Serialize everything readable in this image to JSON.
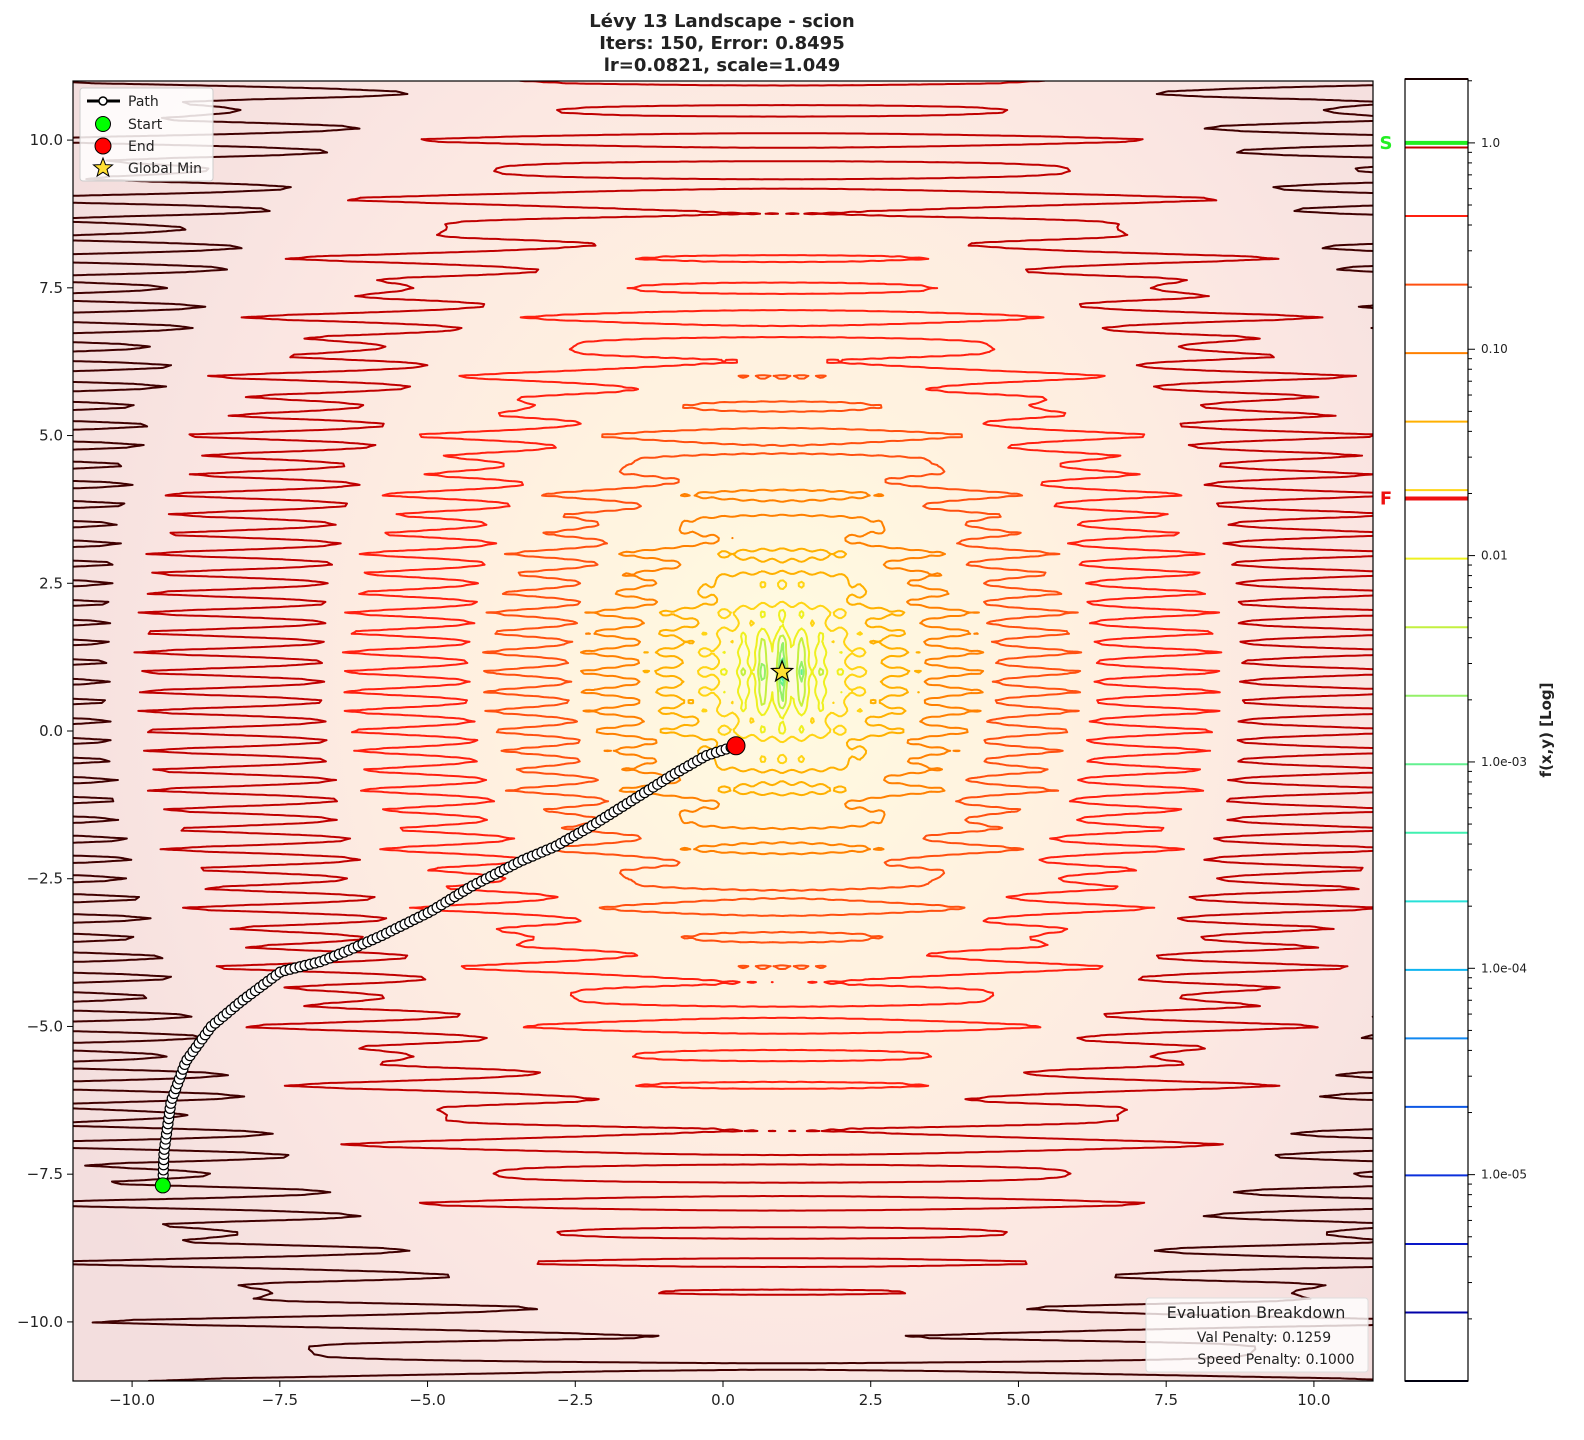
{
  "chart_data": {
    "type": "contour",
    "title": [
      "Lévy 13 Landscape - scion",
      "Iters: 150, Error: 0.8495",
      "lr=0.0821, scale=1.049"
    ],
    "function": "Lévy 13",
    "xlim": [
      -11,
      11
    ],
    "ylim": [
      -11,
      11
    ],
    "x_ticks": [
      "−10.0",
      "−7.5",
      "−5.0",
      "−2.5",
      "0.0",
      "2.5",
      "5.0",
      "7.5",
      "10.0"
    ],
    "x_tick_values": [
      -10,
      -7.5,
      -5,
      -2.5,
      0,
      2.5,
      5,
      7.5,
      10
    ],
    "y_ticks": [
      "−10.0",
      "−7.5",
      "−5.0",
      "−2.5",
      "0.0",
      "2.5",
      "5.0",
      "7.5",
      "10.0"
    ],
    "y_tick_values": [
      -10,
      -7.5,
      -5,
      -2.5,
      0,
      2.5,
      5,
      7.5,
      10
    ],
    "grid": false,
    "colorbar": {
      "label": "f(x,y) [Log]",
      "scale": "log",
      "range": [
        1e-06,
        2.04
      ],
      "tick_labels": [
        "1.0",
        "0.10",
        "0.01",
        "1.0e-03",
        "1.0e-04",
        "1.0e-05"
      ],
      "tick_values": [
        1,
        0.1,
        0.01,
        0.001,
        0.0001,
        1e-05
      ],
      "start_marker": {
        "label": "S",
        "value": 1.0,
        "color": "#22ee22"
      },
      "end_marker": {
        "label": "F",
        "value": 0.0189,
        "color": "#ee1111"
      }
    },
    "level_colors": [
      "#000028",
      "#0000a8",
      "#0a18c8",
      "#0c30dc",
      "#0e58e4",
      "#1088f0",
      "#10b4f0",
      "#28e0d8",
      "#40f0b0",
      "#64f090",
      "#94f068",
      "#c4f040",
      "#eef020",
      "#ffd414",
      "#ffb000",
      "#ff8000",
      "#ff5010",
      "#ff2010",
      "#c00000",
      "#400000"
    ],
    "path": {
      "iterations": 150,
      "points": [
        [
          -9.48,
          -7.69
        ],
        [
          -9.46,
          -7.12
        ],
        [
          -9.34,
          -6.27
        ],
        [
          -9.09,
          -5.59
        ],
        [
          -8.66,
          -5.0
        ],
        [
          -8.16,
          -4.58
        ],
        [
          -7.48,
          -4.07
        ],
        [
          -6.8,
          -3.9
        ],
        [
          -6.38,
          -3.73
        ],
        [
          -5.79,
          -3.47
        ],
        [
          -4.94,
          -3.05
        ],
        [
          -4.26,
          -2.63
        ],
        [
          -3.42,
          -2.2
        ],
        [
          -2.83,
          -1.95
        ],
        [
          -2.23,
          -1.61
        ],
        [
          -1.56,
          -1.19
        ],
        [
          -0.88,
          -0.76
        ],
        [
          -0.29,
          -0.42
        ],
        [
          0.22,
          -0.25
        ]
      ]
    },
    "start": [
      -9.48,
      -7.69
    ],
    "end": [
      0.22,
      -0.25
    ],
    "global_min": [
      1,
      1
    ],
    "legend": {
      "placement": "top-left",
      "entries": [
        "Path",
        "Start",
        "End",
        "Global Min"
      ]
    },
    "evaluation": {
      "title": "Evaluation Breakdown",
      "lines": [
        "Val Penalty: 0.1259",
        "Speed Penalty: 0.1000"
      ],
      "placement": "bottom-right"
    }
  }
}
